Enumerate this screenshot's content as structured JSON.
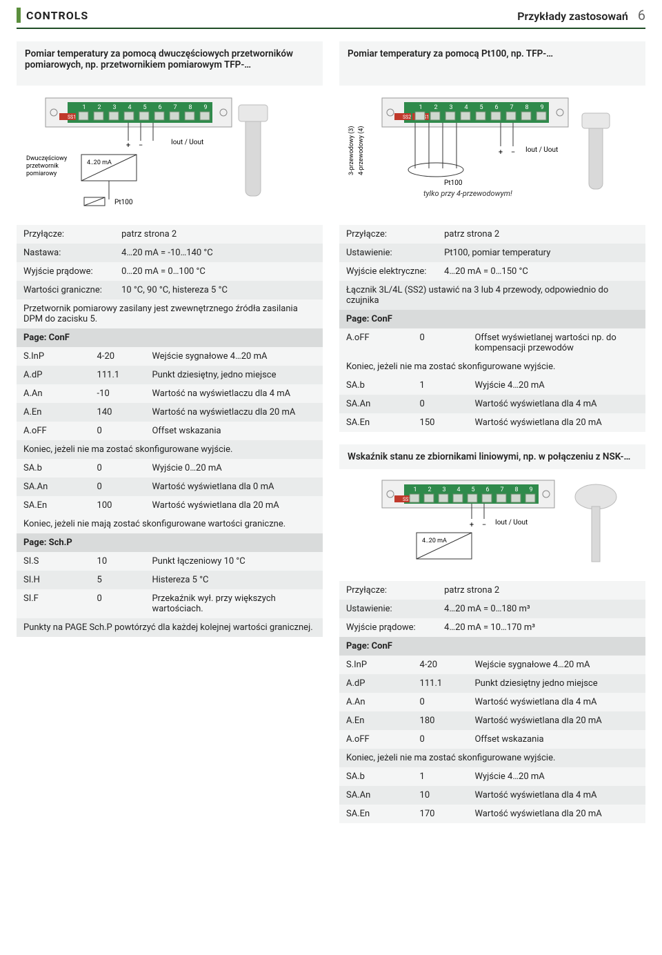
{
  "header": {
    "left": "CONTROLS",
    "right": "Przykłady zastosowań",
    "pagenum": "6"
  },
  "colors": {
    "accent": "#5b8f3d",
    "rule": "#1f4d26",
    "panel": "#f4f5f5",
    "row_alt": "#e9ebeb",
    "page_hd": "#d9dbdb"
  },
  "left": {
    "panel_title": "Pomiar temperatury za pomocą dwuczęściowych przetworników pomiarowych, np. przetwornikiem pomiarowym TFP-…",
    "diagram": {
      "label_transducer_1": "Dwuczęściowy",
      "label_transducer_2": "przetwornik",
      "label_transducer_3": "pomiarowy",
      "label_range": "4..20 mA",
      "label_io": "Iout / Uout",
      "label_pt100": "Pt100",
      "terminals": [
        "1",
        "2",
        "3",
        "4",
        "5",
        "6",
        "7",
        "8",
        "9"
      ],
      "ss1": "SS1"
    },
    "kv": [
      [
        "Przyłącze:",
        "patrz strona 2"
      ],
      [
        "Nastawa:",
        "4…20 mA = -10…140 °C"
      ],
      [
        "Wyjście prądowe:",
        "0…20 mA = 0…100 °C"
      ],
      [
        "Wartości graniczne:",
        "10 °C, 90 °C, histereza 5 °C"
      ]
    ],
    "note1": "Przetwornik pomiarowy zasilany jest zwewnętrznego źródła zasilania DPM do zacisku 5.",
    "page_conf_label": "Page: ConF",
    "grid1": [
      [
        "S.InP",
        "4-20",
        "Wejście sygnałowe 4…20 mA"
      ],
      [
        "A.dP",
        "111.1",
        "Punkt dziesiętny, jedno miejsce"
      ],
      [
        "A.An",
        "-10",
        "Wartość na wyświetlaczu dla 4 mA"
      ],
      [
        "A.En",
        "140",
        "Wartość na wyświetlaczu dla 20 mA"
      ],
      [
        "A.oFF",
        "0",
        "Offset wskazania"
      ]
    ],
    "note2": "Koniec, jeżeli nie ma zostać skonfigurowane wyjście.",
    "grid2": [
      [
        "SA.b",
        "0",
        "Wyjście 0…20 mA"
      ],
      [
        "SA.An",
        "0",
        "Wartość wyświetlana dla 0 mA"
      ],
      [
        "SA.En",
        "100",
        "Wartość wyświetlana dla 20 mA"
      ]
    ],
    "note3": "Koniec, jeżeli nie mają zostać skonfigurowane wartości graniczne.",
    "page_schp_label": "Page: Sch.P",
    "grid3": [
      [
        "SI.S",
        "10",
        "Punkt łączeniowy 10 °C"
      ],
      [
        "SI.H",
        "5",
        "Histereza 5 °C"
      ],
      [
        "SI.F",
        "0",
        "Przekaźnik wył. przy większych wartościach."
      ]
    ],
    "note4": "Punkty na PAGE Sch.P powtórzyć dla każdej kolejnej wartości granicznej."
  },
  "right": {
    "panel_title": "Pomiar temperatury za pomocą Pt100, np. TFP-…",
    "diagram": {
      "label_3w": "3-przewodowy (3)",
      "label_4w": "4-przewodowy (4)",
      "label_pt100": "Pt100",
      "label_io": "Iout / Uout",
      "label_only4": "tylko przy 4-przewodowym!",
      "terminals": [
        "1",
        "2",
        "3",
        "4",
        "5",
        "6",
        "7",
        "8",
        "9"
      ],
      "ss1": "SS1",
      "ss2": "SS2"
    },
    "kv": [
      [
        "Przyłącze:",
        "patrz strona 2"
      ],
      [
        "Ustawienie:",
        "Pt100, pomiar temperatury"
      ],
      [
        "Wyjście elektryczne:",
        "4…20 mA = 0…150 °C"
      ]
    ],
    "note1": "Łącznik 3L/4L (SS2) ustawić na 3 lub 4 przewody, odpowiednio do czujnika",
    "page_conf_label": "Page: ConF",
    "grid1": [
      [
        "A.oFF",
        "0",
        "Offset wyświetlanej wartości np. do kompensacji przewodów"
      ]
    ],
    "note2": "Koniec, jeżeli nie ma zostać skonfigurowane wyjście.",
    "grid2": [
      [
        "SA.b",
        "1",
        "Wyjście 4…20 mA"
      ],
      [
        "SA.An",
        "0",
        "Wartość wyświetlana dla 4 mA"
      ],
      [
        "SA.En",
        "150",
        "Wartość wyświetlana dla 20 mA"
      ]
    ],
    "subhead": "Wskaźnik stanu ze zbiornikami liniowymi, np. w połączeniu z NSK-…",
    "diagram2": {
      "label_range": "4..20 mA",
      "label_io": "Iout / Uout",
      "terminals": [
        "1",
        "2",
        "3",
        "4",
        "5",
        "6",
        "7",
        "8",
        "9"
      ],
      "ss1": "SS1"
    },
    "kv2": [
      [
        "Przyłącze:",
        "patrz strona 2"
      ],
      [
        "Ustawienie:",
        "4…20 mA = 0…180 m³"
      ],
      [
        "Wyjście prądowe:",
        "4…20 mA = 10…170 m³"
      ]
    ],
    "page_conf_label2": "Page: ConF",
    "grid3": [
      [
        "S.InP",
        "4-20",
        "Wejście sygnałowe 4…20 mA"
      ],
      [
        "A.dP",
        "111.1",
        "Punkt dziesiętny jedno miejsce"
      ],
      [
        "A.An",
        "0",
        "Wartość wyświetlana dla 4 mA"
      ],
      [
        "A.En",
        "180",
        "Wartość wyświetlana dla 20 mA"
      ],
      [
        "A.oFF",
        "0",
        "Offset wskazania"
      ]
    ],
    "note3": "Koniec, jeżeli nie ma zostać skonfigurowane wyjście.",
    "grid4": [
      [
        "SA.b",
        "1",
        "Wyjście 4…20 mA"
      ],
      [
        "SA.An",
        "10",
        "Wartość wyświetlana dla 4 mA"
      ],
      [
        "SA.En",
        "170",
        "Wartość wyświetlana dla 20 mA"
      ]
    ]
  }
}
